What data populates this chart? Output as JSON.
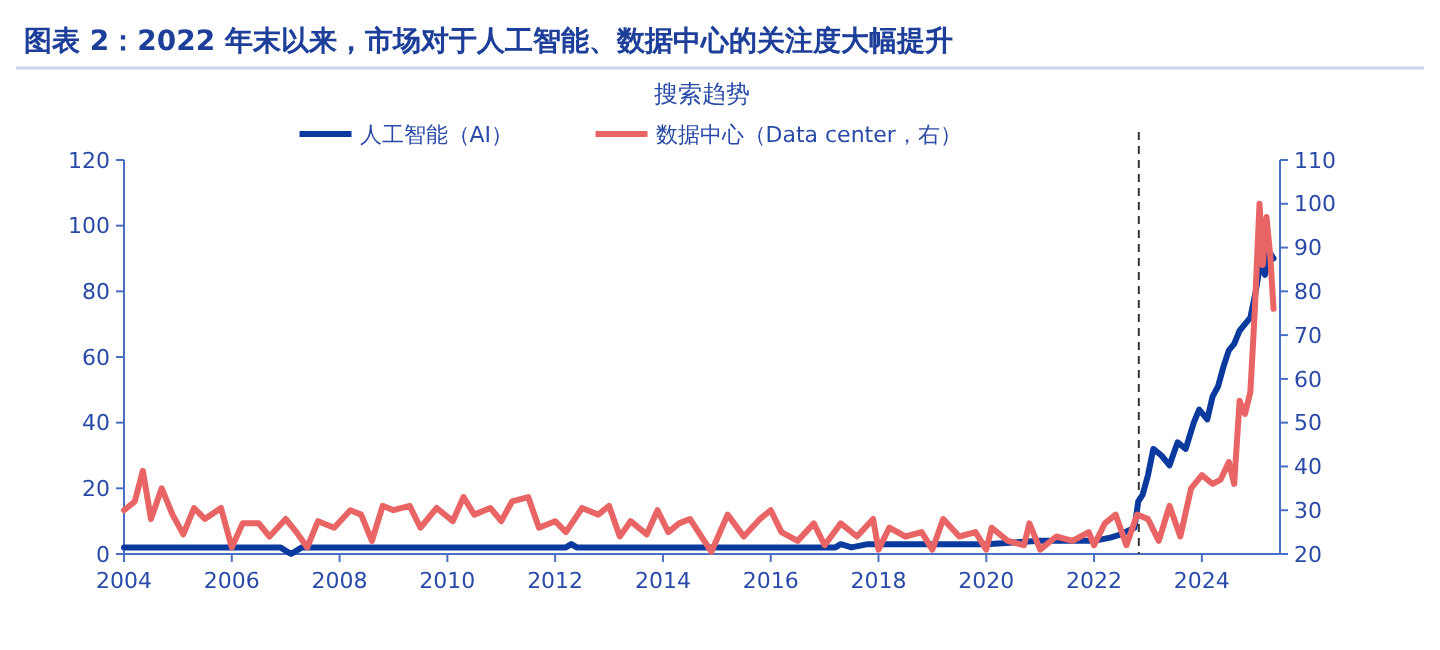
{
  "chart_data": {
    "type": "line",
    "title": "图表 2：2022 年末以来，市场对于人工智能、数据中心的关注度大幅提升",
    "subtitle": "搜索趋势",
    "legend": "top",
    "xlim": [
      2004,
      2025.45
    ],
    "xticks": [
      2004,
      2006,
      2008,
      2010,
      2012,
      2014,
      2016,
      2018,
      2020,
      2022,
      2024
    ],
    "ylim": [
      0,
      120
    ],
    "yticks": [
      0,
      20,
      40,
      60,
      80,
      100,
      120
    ],
    "y2lim": [
      20,
      110
    ],
    "y2ticks": [
      20,
      30,
      40,
      50,
      60,
      70,
      80,
      90,
      100,
      110
    ],
    "ref_lines": [
      {
        "axis": "x",
        "value": 2022.83,
        "line_style": "dashed",
        "color": "#333333"
      }
    ],
    "series": [
      {
        "name": "人工智能（AI）",
        "color": "#0b3a9e",
        "axis": "y",
        "x": [
          2004,
          2006.9,
          2007.1,
          2007.3,
          2012.2,
          2012.3,
          2012.4,
          2017.2,
          2017.3,
          2017.5,
          2017.8,
          2018,
          2020,
          2021,
          2022,
          2022.3,
          2022.5,
          2022.75,
          2022.82,
          2022.9,
          2023,
          2023.1,
          2023.25,
          2023.4,
          2023.55,
          2023.7,
          2023.85,
          2023.95,
          2024.1,
          2024.2,
          2024.3,
          2024.4,
          2024.5,
          2024.6,
          2024.7,
          2024.8,
          2024.9,
          2025,
          2025.1,
          2025.17,
          2025.25,
          2025.33
        ],
        "values": [
          2,
          2,
          0,
          2,
          2,
          3,
          2,
          2,
          3,
          2,
          3,
          3,
          3,
          4,
          4,
          5,
          6,
          8,
          16,
          18,
          24,
          32,
          30,
          27,
          34,
          32,
          40,
          44,
          41,
          48,
          51,
          57,
          62,
          64,
          68,
          70,
          72,
          80,
          90,
          85,
          92,
          90
        ]
      },
      {
        "name": "数据中心（Data center，右）",
        "color": "#e96464",
        "axis": "y2",
        "x": [
          2004,
          2004.2,
          2004.35,
          2004.5,
          2004.7,
          2004.9,
          2005.1,
          2005.3,
          2005.5,
          2005.8,
          2006,
          2006.2,
          2006.5,
          2006.7,
          2007,
          2007.2,
          2007.4,
          2007.6,
          2007.9,
          2008.2,
          2008.4,
          2008.6,
          2008.8,
          2009,
          2009.3,
          2009.5,
          2009.8,
          2010.1,
          2010.3,
          2010.5,
          2010.8,
          2011,
          2011.2,
          2011.5,
          2011.7,
          2012,
          2012.2,
          2012.5,
          2012.8,
          2013,
          2013.2,
          2013.4,
          2013.7,
          2013.9,
          2014.1,
          2014.3,
          2014.5,
          2014.9,
          2015.2,
          2015.5,
          2015.8,
          2016,
          2016.2,
          2016.5,
          2016.8,
          2017,
          2017.3,
          2017.6,
          2017.9,
          2018,
          2018.2,
          2018.5,
          2018.8,
          2019,
          2019.2,
          2019.5,
          2019.8,
          2020,
          2020.1,
          2020.4,
          2020.7,
          2020.8,
          2021,
          2021.3,
          2021.6,
          2021.9,
          2022,
          2022.2,
          2022.4,
          2022.6,
          2022.8,
          2023,
          2023.2,
          2023.4,
          2023.6,
          2023.8,
          2024,
          2024.2,
          2024.35,
          2024.5,
          2024.6,
          2024.7,
          2024.8,
          2024.9,
          2024.98,
          2025.07,
          2025.13,
          2025.2,
          2025.27,
          2025.33
        ],
        "values": [
          30,
          32,
          39,
          28,
          35,
          29,
          24.5,
          30.5,
          28,
          30.5,
          21.5,
          27,
          27,
          24,
          28,
          25,
          21.5,
          27.5,
          26,
          30,
          29,
          23,
          31,
          30,
          31,
          26,
          30.5,
          27.5,
          33,
          29,
          30.5,
          27.5,
          32,
          33,
          26,
          27.5,
          25,
          30.5,
          29,
          31,
          24,
          27.5,
          24.5,
          30,
          25,
          27,
          28,
          20.5,
          29,
          24,
          28,
          30,
          25,
          23,
          27,
          22,
          27,
          24,
          28,
          21,
          26,
          24,
          25,
          21,
          28,
          24,
          25,
          21,
          26,
          23,
          22,
          27,
          21,
          24,
          23,
          25,
          22,
          27,
          29,
          22,
          29,
          28,
          23,
          31,
          24,
          35,
          38,
          36,
          37,
          41,
          36,
          55,
          52,
          57,
          75,
          100,
          86,
          97,
          88,
          76
        ]
      }
    ]
  }
}
